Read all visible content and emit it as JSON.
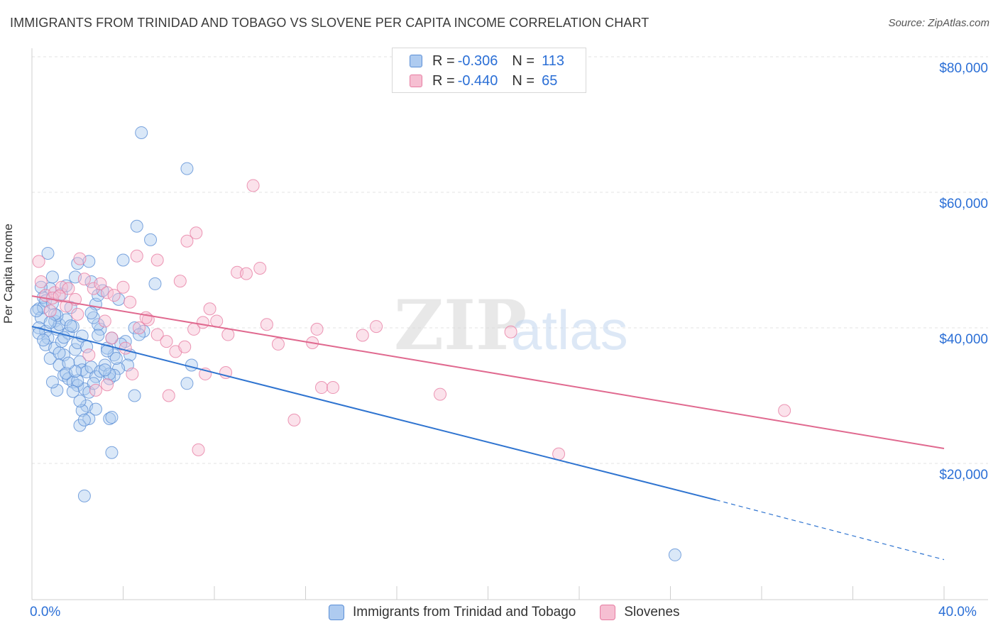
{
  "chart_data": {
    "type": "scatter",
    "title": "IMMIGRANTS FROM TRINIDAD AND TOBAGO VS SLOVENE PER CAPITA INCOME CORRELATION CHART",
    "source": "Source: ZipAtlas.com",
    "ylabel": "Per Capita Income",
    "xlabel": "",
    "xlim": [
      0,
      40
    ],
    "ylim": [
      0,
      80000
    ],
    "x_tick_labels": [
      "0.0%",
      "40.0%"
    ],
    "y_tick_labels": [
      "$20,000",
      "$40,000",
      "$60,000",
      "$80,000"
    ],
    "y_ticks": [
      20000,
      40000,
      60000,
      80000
    ],
    "watermark": "ZIPatlas",
    "legend": {
      "rows": [
        {
          "r_label": "R =",
          "r_value": "-0.306",
          "n_label": "N =",
          "n_value": "113"
        },
        {
          "r_label": "R =",
          "r_value": "-0.440",
          "n_label": "N =",
          "n_value": "65"
        }
      ]
    },
    "series": [
      {
        "name": "Immigrants from Trinidad and Tobago",
        "color": "#5b8fd6",
        "fill": "#aecbf0",
        "line_color": "#2f74d0",
        "trend": {
          "x0": 0,
          "y0": 40200,
          "x1": 30,
          "y1": 14600,
          "dash_to_x": 40,
          "dash_to_y": 5800
        },
        "points": [
          [
            0.3,
            42800
          ],
          [
            0.4,
            41500
          ],
          [
            0.5,
            43000
          ],
          [
            0.3,
            40000
          ],
          [
            0.6,
            39500
          ],
          [
            0.7,
            38500
          ],
          [
            0.5,
            44500
          ],
          [
            0.8,
            45800
          ],
          [
            0.9,
            47500
          ],
          [
            1.0,
            41000
          ],
          [
            1.1,
            39800
          ],
          [
            1.2,
            40500
          ],
          [
            0.6,
            37500
          ],
          [
            0.8,
            35500
          ],
          [
            1.0,
            37000
          ],
          [
            1.3,
            38000
          ],
          [
            1.4,
            36000
          ],
          [
            1.5,
            41200
          ],
          [
            1.6,
            39200
          ],
          [
            1.7,
            43000
          ],
          [
            1.8,
            40200
          ],
          [
            1.9,
            36800
          ],
          [
            2.0,
            37800
          ],
          [
            2.1,
            35000
          ],
          [
            2.2,
            33800
          ],
          [
            1.2,
            34500
          ],
          [
            1.4,
            33000
          ],
          [
            1.6,
            32500
          ],
          [
            1.8,
            32000
          ],
          [
            2.0,
            31500
          ],
          [
            2.3,
            31000
          ],
          [
            2.5,
            30500
          ],
          [
            1.1,
            30800
          ],
          [
            0.9,
            32000
          ],
          [
            1.5,
            33300
          ],
          [
            2.4,
            33500
          ],
          [
            2.6,
            34200
          ],
          [
            2.8,
            32800
          ],
          [
            3.0,
            33600
          ],
          [
            3.2,
            34500
          ],
          [
            3.4,
            32500
          ],
          [
            3.6,
            36000
          ],
          [
            3.3,
            37000
          ],
          [
            3.5,
            38500
          ],
          [
            3.0,
            39800
          ],
          [
            2.9,
            40500
          ],
          [
            2.7,
            41500
          ],
          [
            2.8,
            43500
          ],
          [
            2.9,
            44800
          ],
          [
            3.1,
            45500
          ],
          [
            2.6,
            46800
          ],
          [
            2.5,
            49800
          ],
          [
            2.0,
            49500
          ],
          [
            1.9,
            47500
          ],
          [
            0.7,
            51000
          ],
          [
            4.0,
            50000
          ],
          [
            4.6,
            55000
          ],
          [
            5.2,
            53000
          ],
          [
            5.4,
            46500
          ],
          [
            4.9,
            39500
          ],
          [
            4.5,
            40000
          ],
          [
            4.3,
            36000
          ],
          [
            4.2,
            34500
          ],
          [
            3.8,
            34000
          ],
          [
            3.6,
            33000
          ],
          [
            3.4,
            33200
          ],
          [
            3.2,
            33800
          ],
          [
            2.7,
            31800
          ],
          [
            2.4,
            28500
          ],
          [
            2.2,
            27800
          ],
          [
            2.5,
            26600
          ],
          [
            3.4,
            26600
          ],
          [
            3.5,
            26800
          ],
          [
            2.1,
            25600
          ],
          [
            2.3,
            26400
          ],
          [
            3.5,
            21600
          ],
          [
            4.5,
            30000
          ],
          [
            6.8,
            31800
          ],
          [
            7.0,
            34500
          ],
          [
            4.8,
            68800
          ],
          [
            6.8,
            63500
          ],
          [
            2.3,
            15200
          ],
          [
            28.2,
            6500
          ],
          [
            0.2,
            42500
          ],
          [
            0.3,
            39200
          ],
          [
            1.1,
            41800
          ],
          [
            1.3,
            45000
          ],
          [
            1.7,
            40300
          ],
          [
            0.4,
            46000
          ],
          [
            0.6,
            44000
          ],
          [
            2.2,
            38800
          ],
          [
            2.0,
            32200
          ],
          [
            1.9,
            33600
          ],
          [
            3.7,
            35500
          ],
          [
            4.1,
            38000
          ],
          [
            1.0,
            42000
          ],
          [
            0.5,
            38200
          ],
          [
            1.6,
            34800
          ],
          [
            2.4,
            37200
          ],
          [
            2.9,
            38900
          ],
          [
            3.8,
            44200
          ],
          [
            1.2,
            36300
          ],
          [
            0.8,
            40800
          ],
          [
            1.4,
            38600
          ],
          [
            2.1,
            29200
          ],
          [
            3.9,
            37600
          ],
          [
            4.7,
            39000
          ],
          [
            0.9,
            43600
          ],
          [
            1.5,
            46200
          ],
          [
            2.6,
            42200
          ],
          [
            3.3,
            36600
          ],
          [
            1.8,
            30600
          ],
          [
            2.8,
            28000
          ]
        ]
      },
      {
        "name": "Slovenes",
        "color": "#e77da2",
        "fill": "#f6bfd2",
        "line_color": "#e0698f",
        "trend": {
          "x0": 0,
          "y0": 44700,
          "x1": 40,
          "y1": 22200
        },
        "points": [
          [
            0.3,
            49800
          ],
          [
            0.4,
            46800
          ],
          [
            0.6,
            44800
          ],
          [
            0.8,
            42500
          ],
          [
            1.0,
            45200
          ],
          [
            1.3,
            46000
          ],
          [
            1.6,
            45800
          ],
          [
            1.9,
            44200
          ],
          [
            2.1,
            50200
          ],
          [
            2.3,
            47200
          ],
          [
            2.7,
            45800
          ],
          [
            3.0,
            46500
          ],
          [
            3.3,
            45200
          ],
          [
            3.6,
            44800
          ],
          [
            4.0,
            46000
          ],
          [
            4.3,
            43800
          ],
          [
            4.7,
            40000
          ],
          [
            5.1,
            41200
          ],
          [
            5.5,
            39000
          ],
          [
            5.9,
            38000
          ],
          [
            6.3,
            36500
          ],
          [
            6.7,
            37200
          ],
          [
            7.1,
            39800
          ],
          [
            7.5,
            40800
          ],
          [
            7.8,
            42800
          ],
          [
            8.1,
            41000
          ],
          [
            8.6,
            39000
          ],
          [
            9.0,
            48200
          ],
          [
            9.4,
            48000
          ],
          [
            10.0,
            48800
          ],
          [
            10.3,
            40500
          ],
          [
            10.8,
            37600
          ],
          [
            11.5,
            26400
          ],
          [
            12.3,
            37800
          ],
          [
            12.5,
            39800
          ],
          [
            12.7,
            31200
          ],
          [
            13.2,
            31200
          ],
          [
            14.5,
            38900
          ],
          [
            15.1,
            40200
          ],
          [
            17.9,
            30200
          ],
          [
            21.0,
            39400
          ],
          [
            23.1,
            21400
          ],
          [
            33.0,
            27800
          ],
          [
            9.7,
            61000
          ],
          [
            7.2,
            54000
          ],
          [
            6.8,
            52800
          ],
          [
            5.5,
            50000
          ],
          [
            4.6,
            50600
          ],
          [
            3.2,
            41000
          ],
          [
            2.5,
            36000
          ],
          [
            2.8,
            30800
          ],
          [
            3.3,
            31600
          ],
          [
            4.1,
            37000
          ],
          [
            6.0,
            30000
          ],
          [
            7.3,
            22000
          ],
          [
            7.6,
            33200
          ],
          [
            8.5,
            33400
          ],
          [
            5.0,
            41500
          ],
          [
            3.5,
            38500
          ],
          [
            1.5,
            43200
          ],
          [
            2.0,
            42000
          ],
          [
            0.9,
            44400
          ],
          [
            1.2,
            44700
          ],
          [
            6.5,
            46900
          ],
          [
            4.4,
            33200
          ]
        ]
      }
    ]
  }
}
